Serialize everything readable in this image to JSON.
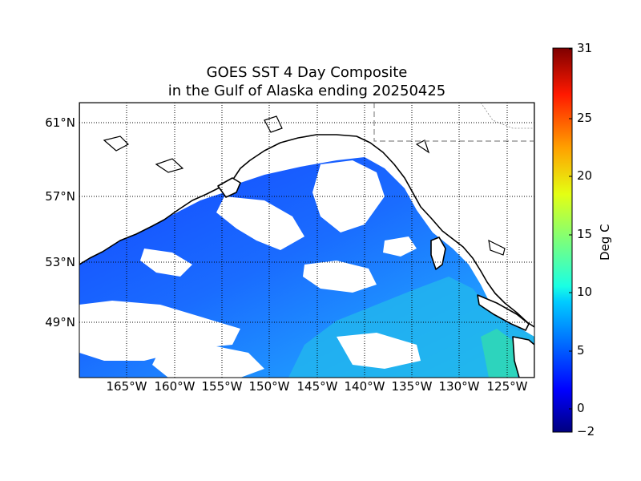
{
  "title": {
    "line1": "GOES SST 4 Day Composite",
    "line2": "in the Gulf of Alaska ending 20250425"
  },
  "map": {
    "lat_labels": [
      "61°N",
      "57°N",
      "53°N",
      "49°N"
    ],
    "lon_labels": [
      "165°W",
      "160°W",
      "155°W",
      "150°W",
      "145°W",
      "140°W",
      "135°W",
      "130°W",
      "125°W"
    ],
    "land_color": "#ffffff",
    "coast_color": "#000000",
    "sst_colors": {
      "cool": "#1a4fff",
      "mid": "#1f8cff",
      "warm": "#22b8f0",
      "coastal": "#2ed6b8"
    }
  },
  "colorbar": {
    "label": "Deg C",
    "ticks": [
      "31",
      "25",
      "20",
      "15",
      "10",
      "5",
      "0",
      "−2"
    ],
    "min": -2,
    "max": 31,
    "colormap": "jet"
  }
}
